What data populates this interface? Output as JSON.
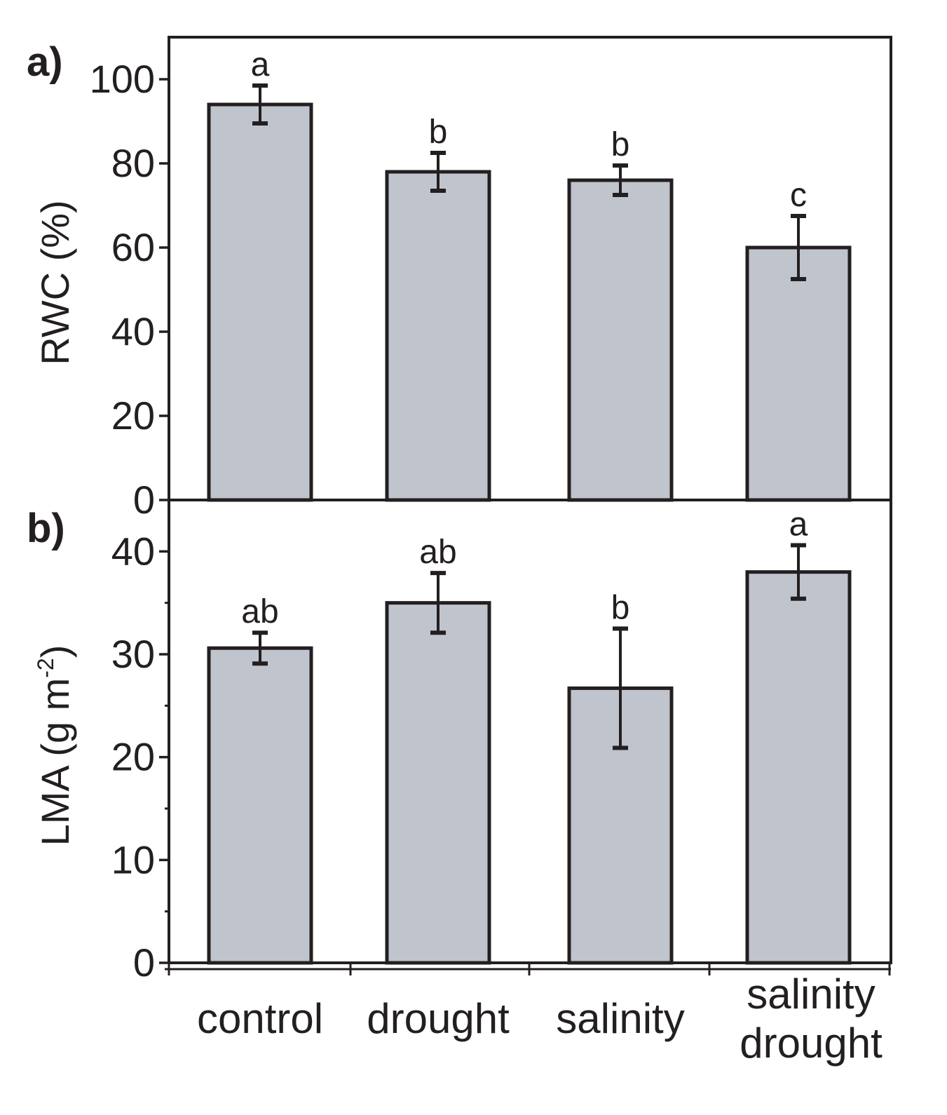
{
  "chart_data": {
    "type": "bar",
    "categories": [
      {
        "lines": [
          "control"
        ]
      },
      {
        "lines": [
          "drought"
        ]
      },
      {
        "lines": [
          "salinity"
        ]
      },
      {
        "lines": [
          "salinity",
          "drought"
        ]
      }
    ],
    "panels": [
      {
        "panel_label": "a)",
        "ylabel": "RWC (%)",
        "ylim": [
          0,
          110
        ],
        "yticks": [
          0,
          20,
          40,
          60,
          80,
          100
        ],
        "ytick_labels": [
          "0",
          "20",
          "40",
          "60",
          "80",
          "100"
        ],
        "values": [
          94,
          78,
          76,
          60
        ],
        "errors": [
          4.5,
          4.5,
          3.5,
          7.5
        ],
        "significance": [
          "a",
          "b",
          "b",
          "c"
        ]
      },
      {
        "panel_label": "b)",
        "ylabel": "LMA (g m",
        "ylabel_sup": "-2",
        "ylabel_close": ")",
        "ylim": [
          0,
          45
        ],
        "yticks": [
          0,
          10,
          20,
          30,
          40
        ],
        "ytick_labels": [
          "0",
          "10",
          "20",
          "30",
          "40"
        ],
        "values": [
          30.6,
          35,
          26.7,
          38
        ],
        "errors": [
          1.5,
          2.9,
          5.8,
          2.6
        ],
        "significance": [
          "ab",
          "ab",
          "b",
          "a"
        ]
      }
    ],
    "colors": {
      "bar_fill": "#c0c4cc",
      "ink": "#231f20"
    }
  }
}
